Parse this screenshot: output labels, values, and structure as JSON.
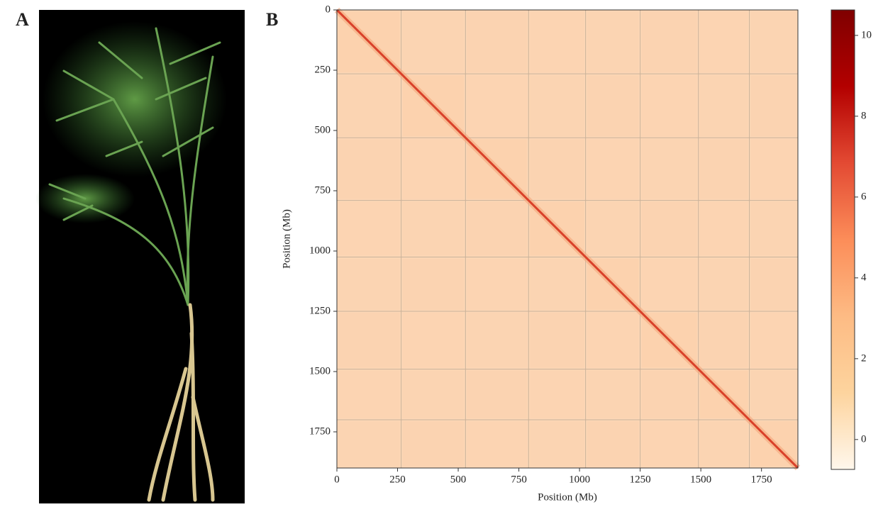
{
  "panel_labels": [
    "A",
    "B"
  ],
  "chart_data": {
    "type": "heatmap",
    "xlabel": "Position (Mb)",
    "ylabel": "Position (Mb)",
    "xlim": [
      0,
      1900
    ],
    "ylim": [
      0,
      1900
    ],
    "xticks": [
      0,
      250,
      500,
      750,
      1000,
      1250,
      1500,
      1750
    ],
    "yticks": [
      0,
      250,
      500,
      750,
      1000,
      1250,
      1500,
      1750
    ],
    "boundaries": [
      265,
      530,
      790,
      1025,
      1250,
      1490,
      1700
    ],
    "colorbar": {
      "lim": [
        -0.74,
        10.63
      ],
      "ticks": [
        0,
        2,
        4,
        6,
        8,
        10
      ],
      "colors": [
        "#fff7ec",
        "#fdd49e",
        "#fdbb84",
        "#fc8d59",
        "#e34a33",
        "#b30000",
        "#7f0000"
      ]
    }
  }
}
